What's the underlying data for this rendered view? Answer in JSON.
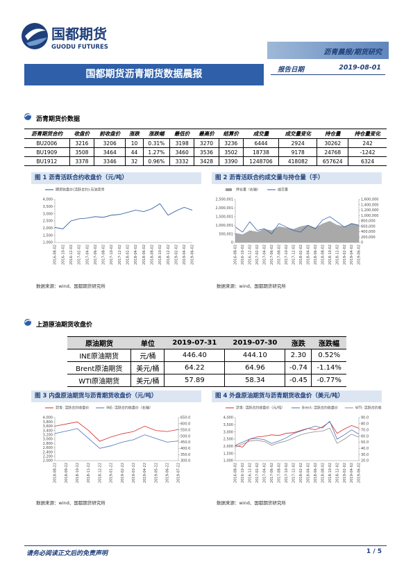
{
  "header": {
    "logo_cn": "国都期货",
    "logo_en": "GUODU FUTURES",
    "tag": "沥青晨报/期货研究",
    "title": "国都期货沥青期货数据晨报",
    "date_label": "报告日期",
    "date": "2019-08-01"
  },
  "section1": "沥青期货价数据",
  "table1": {
    "header": [
      "沥青期货合约",
      "收盘价",
      "前收盘价",
      "涨跌",
      "涨跌幅",
      "最低价",
      "最高价",
      "结算价",
      "成交量",
      "成交量变化",
      "持仓量",
      "持仓量变化"
    ],
    "rows": [
      [
        "BU2006",
        "3216",
        "3206",
        "10",
        "0.31%",
        "3198",
        "3270",
        "3236",
        "6444",
        "2924",
        "30262",
        "242"
      ],
      [
        "BU1909",
        "3508",
        "3464",
        "44",
        "1.27%",
        "3460",
        "3536",
        "3502",
        "18738",
        "9178",
        "24768",
        "-1242"
      ],
      [
        "BU1912",
        "3378",
        "3346",
        "32",
        "0.96%",
        "3332",
        "3428",
        "3390",
        "1248706",
        "418082",
        "657624",
        "6324"
      ]
    ]
  },
  "section2": "上游原油期货收盘价",
  "table2": {
    "header": [
      "原油期货",
      "单位",
      "2019-07-31",
      "2019-07-30",
      "涨跌",
      "涨跌幅"
    ],
    "rows": [
      [
        "INE原油期货",
        "元/桶",
        "446.40",
        "444.10",
        "2.30",
        "0.52%"
      ],
      [
        "Brent原油期货",
        "美元/桶",
        "64.22",
        "64.96",
        "-0.74",
        "-1.14%"
      ],
      [
        "WTI原油期货",
        "美元/桶",
        "57.89",
        "58.34",
        "-0.45",
        "-0.77%"
      ]
    ]
  },
  "source": "数据来源：wind、国都期货研究所",
  "footer": {
    "disclaimer": "请务必阅读正文后的免责声明",
    "page": "1 / 5"
  },
  "chart_data": [
    {
      "type": "line",
      "title": "图 1 沥青活跃合约收盘价（元/吨）",
      "x": [
        "2016-08-02",
        "2016-10-02",
        "2016-12-02",
        "2017-02-02",
        "2017-04-02",
        "2017-06-02",
        "2017-08-02",
        "2017-10-02",
        "2017-12-02",
        "2018-02-02",
        "2018-04-02",
        "2018-06-02",
        "2018-08-02",
        "2018-10-02",
        "2018-12-02",
        "2019-02-02",
        "2019-04-02",
        "2019-06-02"
      ],
      "series": [
        {
          "name": "期货收盘价(活跃合约):石油沥青",
          "color": "#1f4e9b",
          "values": [
            2050,
            1950,
            2500,
            2650,
            2700,
            2800,
            2750,
            2900,
            2950,
            3100,
            3250,
            3150,
            3350,
            3700,
            2900,
            3200,
            3450,
            3250
          ]
        }
      ],
      "ylim": [
        1000,
        4000
      ],
      "yticks": [
        {
          "value": 1000,
          "label": "1,000"
        },
        {
          "value": 1500,
          "label": "1,500"
        },
        {
          "value": 2000,
          "label": "2,000"
        },
        {
          "value": 2500,
          "label": "2,500"
        },
        {
          "value": 3000,
          "label": "3,000"
        },
        {
          "value": 3500,
          "label": "3,500"
        },
        {
          "value": 4000,
          "label": "4,000"
        }
      ]
    },
    {
      "type": "line",
      "title": "图 2 沥青活跃合约成交量与持仓量（手）",
      "x": [
        "2016-08-02",
        "2016-10-02",
        "2016-12-02",
        "2017-02-02",
        "2017-04-02",
        "2017-06-02",
        "2017-08-02",
        "2017-10-02",
        "2017-12-02",
        "2018-02-02",
        "2018-04-02",
        "2018-06-02",
        "2018-08-02",
        "2018-10-02",
        "2018-12-02",
        "2019-02-02",
        "2019-04-02",
        "2019-06-02"
      ],
      "series": [
        {
          "name": "持仓量（右轴）",
          "color": "#9a9a9a",
          "kind": "area",
          "axis": "y2",
          "values": [
            350000,
            300000,
            450000,
            400000,
            500000,
            450000,
            600000,
            550000,
            500000,
            600000,
            650000,
            550000,
            700000,
            800000,
            650000,
            600000,
            700000,
            650000
          ]
        },
        {
          "name": "成交量",
          "color": "#2e5fa8",
          "values": [
            900000,
            600000,
            1200000,
            700000,
            800000,
            500000,
            1100000,
            900000,
            700000,
            600000,
            1000000,
            800000,
            1300000,
            1500000,
            1200000,
            900000,
            1100000,
            1000000
          ]
        }
      ],
      "ylim": [
        1,
        2500001
      ],
      "yticks": [
        0,
        {
          "value": 500001,
          "label": "500,001"
        },
        {
          "value": 1000001,
          "label": "1,000,001"
        },
        {
          "value": 1500001,
          "label": "1,500,001"
        },
        {
          "value": 2000001,
          "label": "2,000,001"
        },
        {
          "value": 2500001,
          "label": "2,500,001"
        }
      ],
      "y2lim": [
        0,
        1600000
      ],
      "y2ticks": [
        0,
        {
          "value": 200000,
          "label": "200,000"
        },
        {
          "value": 400000,
          "label": "400,000"
        },
        {
          "value": 600000,
          "label": "600,000"
        },
        {
          "value": 800000,
          "label": "800,000"
        },
        {
          "value": 1000000,
          "label": "1,000,000"
        },
        {
          "value": 1200000,
          "label": "1,200,000"
        },
        {
          "value": 1400000,
          "label": "1,400,000"
        },
        {
          "value": 1600000,
          "label": "1,600,000"
        }
      ]
    },
    {
      "type": "line",
      "title": "图 3 内盘原油期货与沥青期货收盘价（元/吨）",
      "x": [
        "2018-08-22",
        "2018-09-22",
        "2018-10-22",
        "2018-11-22",
        "2018-12-22",
        "2019-01-22",
        "2019-02-22",
        "2019-03-22",
        "2019-04-22",
        "2019-05-22",
        "2019-06-22",
        "2019-07-22"
      ],
      "series": [
        {
          "name": "沥青: 活跃合约收盘价",
          "color": "#d62728",
          "values": [
            3600,
            3700,
            3800,
            3400,
            2900,
            3100,
            3250,
            3350,
            3600,
            3400,
            3350,
            3450
          ]
        },
        {
          "name": "INE: 活跃合约收盘价（右轴）",
          "color": "#4a6fb5",
          "axis": "y2",
          "values": [
            520,
            540,
            560,
            480,
            400,
            420,
            450,
            470,
            510,
            480,
            450,
            460
          ]
        }
      ],
      "ylim": [
        2000,
        4000
      ],
      "yticks": [
        {
          "value": 2000,
          "label": "2,000"
        },
        {
          "value": 2200,
          "label": "2,200"
        },
        {
          "value": 2400,
          "label": "2,400"
        },
        {
          "value": 2600,
          "label": "2,600"
        },
        {
          "value": 2800,
          "label": "2,800"
        },
        {
          "value": 3000,
          "label": "3,000"
        },
        {
          "value": 3200,
          "label": "3,200"
        },
        {
          "value": 3400,
          "label": "3,400"
        },
        {
          "value": 3600,
          "label": "3,600"
        },
        {
          "value": 3800,
          "label": "3,800"
        },
        {
          "value": 4000,
          "label": "4,000"
        }
      ],
      "y2lim": [
        300,
        650
      ],
      "y2ticks": [
        {
          "value": 300,
          "label": "300.0"
        },
        {
          "value": 350,
          "label": "350.0"
        },
        {
          "value": 400,
          "label": "400.0"
        },
        {
          "value": 450,
          "label": "450.0"
        },
        {
          "value": 500,
          "label": "500.0"
        },
        {
          "value": 550,
          "label": "550.0"
        },
        {
          "value": 600,
          "label": "600.0"
        },
        {
          "value": 650,
          "label": "650.0"
        }
      ]
    },
    {
      "type": "line",
      "title": "图 4 外盘原油期货与沥青期货收盘价（美元/吨）",
      "x": [
        "2016-08-02",
        "2016-10-02",
        "2016-12-02",
        "2017-02-02",
        "2017-04-02",
        "2017-06-02",
        "2017-08-02",
        "2017-10-02",
        "2017-12-02",
        "2018-02-02",
        "2018-04-02",
        "2018-06-02",
        "2018-08-02",
        "2018-10-02",
        "2018-12-02",
        "2019-02-02",
        "2019-04-02",
        "2019-06-02"
      ],
      "series": [
        {
          "name": "沥青: 活跃合约收盘价（元/吨）",
          "color": "#d62728",
          "values": [
            2050,
            1950,
            2500,
            2650,
            2700,
            2800,
            2750,
            2900,
            2950,
            3100,
            3250,
            3150,
            3350,
            3700,
            2900,
            3200,
            3450,
            3250
          ]
        },
        {
          "name": "Brent: 活跃合约收盘价",
          "color": "#4a6fb5",
          "axis": "y2",
          "values": [
            45,
            50,
            55,
            56,
            54,
            48,
            52,
            57,
            64,
            68,
            72,
            76,
            73,
            84,
            55,
            62,
            70,
            63
          ]
        },
        {
          "name": "WTI: 活跃合约收盘价（右轴）",
          "color": "#8c8c8c",
          "axis": "y2",
          "values": [
            42,
            47,
            52,
            53,
            51,
            45,
            49,
            52,
            57,
            62,
            65,
            67,
            68,
            73,
            48,
            55,
            63,
            58
          ]
        }
      ],
      "ylim": [
        1000,
        4000
      ],
      "yticks": [
        {
          "value": 1000,
          "label": "1,000"
        },
        {
          "value": 1500,
          "label": "1,500"
        },
        {
          "value": 2000,
          "label": "2,000"
        },
        {
          "value": 2500,
          "label": "2,500"
        },
        {
          "value": 3000,
          "label": "3,000"
        },
        {
          "value": 3500,
          "label": "3,500"
        },
        {
          "value": 4000,
          "label": "4,000"
        }
      ],
      "y2lim": [
        20,
        90
      ],
      "y2ticks": [
        {
          "value": 20,
          "label": "20.0"
        },
        {
          "value": 30,
          "label": "30.0"
        },
        {
          "value": 40,
          "label": "40.0"
        },
        {
          "value": 50,
          "label": "50.0"
        },
        {
          "value": 60,
          "label": "60.0"
        },
        {
          "value": 70,
          "label": "70.0"
        },
        {
          "value": 80,
          "label": "80.0"
        },
        {
          "value": 90,
          "label": "90.0"
        }
      ]
    }
  ]
}
